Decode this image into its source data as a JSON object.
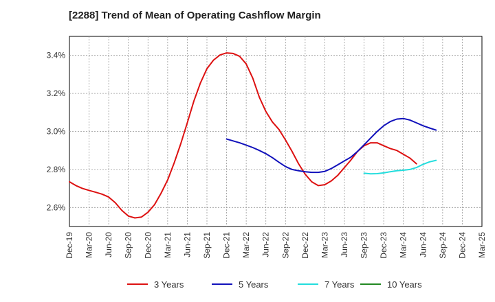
{
  "chart_data": {
    "type": "line",
    "title": "[2288]  Trend of Mean of Operating Cashflow Margin",
    "xlabel": "",
    "ylabel": "",
    "ylim": [
      2.5,
      3.5
    ],
    "y_ticks": [
      2.6,
      2.8,
      3.0,
      3.2,
      3.4
    ],
    "y_tick_labels": [
      "2.6%",
      "2.8%",
      "3.0%",
      "3.2%",
      "3.4%"
    ],
    "x_tick_labels": [
      "Dec-19",
      "Mar-20",
      "Jun-20",
      "Sep-20",
      "Dec-20",
      "Mar-21",
      "Jun-21",
      "Sep-21",
      "Dec-21",
      "Mar-22",
      "Jun-22",
      "Sep-22",
      "Dec-22",
      "Mar-23",
      "Jun-23",
      "Sep-23",
      "Dec-23",
      "Mar-24",
      "Jun-24",
      "Sep-24",
      "Dec-24",
      "Mar-25"
    ],
    "grid": true,
    "legend_position": "bottom",
    "series": [
      {
        "name": "3 Years",
        "color": "#dd1111",
        "start_index": 0,
        "values": [
          2.735,
          2.715,
          2.7,
          2.69,
          2.68,
          2.67,
          2.655,
          2.625,
          2.585,
          2.555,
          2.545,
          2.55,
          2.575,
          2.615,
          2.675,
          2.745,
          2.835,
          2.935,
          3.045,
          3.16,
          3.255,
          3.33,
          3.375,
          3.402,
          3.413,
          3.41,
          3.395,
          3.355,
          3.28,
          3.18,
          3.105,
          3.05,
          3.01,
          2.955,
          2.895,
          2.83,
          2.775,
          2.735,
          2.715,
          2.72,
          2.74,
          2.77,
          2.81,
          2.85,
          2.895,
          2.925,
          2.94,
          2.94,
          2.925,
          2.91,
          2.9,
          2.88,
          2.86,
          2.83
        ]
      },
      {
        "name": "5 Years",
        "color": "#1111bb",
        "start_index": 24,
        "values": [
          2.96,
          2.95,
          2.94,
          2.928,
          2.915,
          2.9,
          2.883,
          2.862,
          2.838,
          2.815,
          2.8,
          2.793,
          2.788,
          2.785,
          2.785,
          2.79,
          2.805,
          2.825,
          2.845,
          2.865,
          2.895,
          2.93,
          2.965,
          3.0,
          3.03,
          3.052,
          3.065,
          3.068,
          3.06,
          3.045,
          3.03,
          3.018,
          3.007
        ]
      },
      {
        "name": "7 Years",
        "color": "#22dddd",
        "start_index": 45,
        "values": [
          2.78,
          2.777,
          2.778,
          2.782,
          2.788,
          2.793,
          2.796,
          2.8,
          2.81,
          2.827,
          2.84,
          2.848
        ]
      },
      {
        "name": "10 Years",
        "color": "#228822",
        "start_index": 0,
        "values": []
      }
    ]
  }
}
